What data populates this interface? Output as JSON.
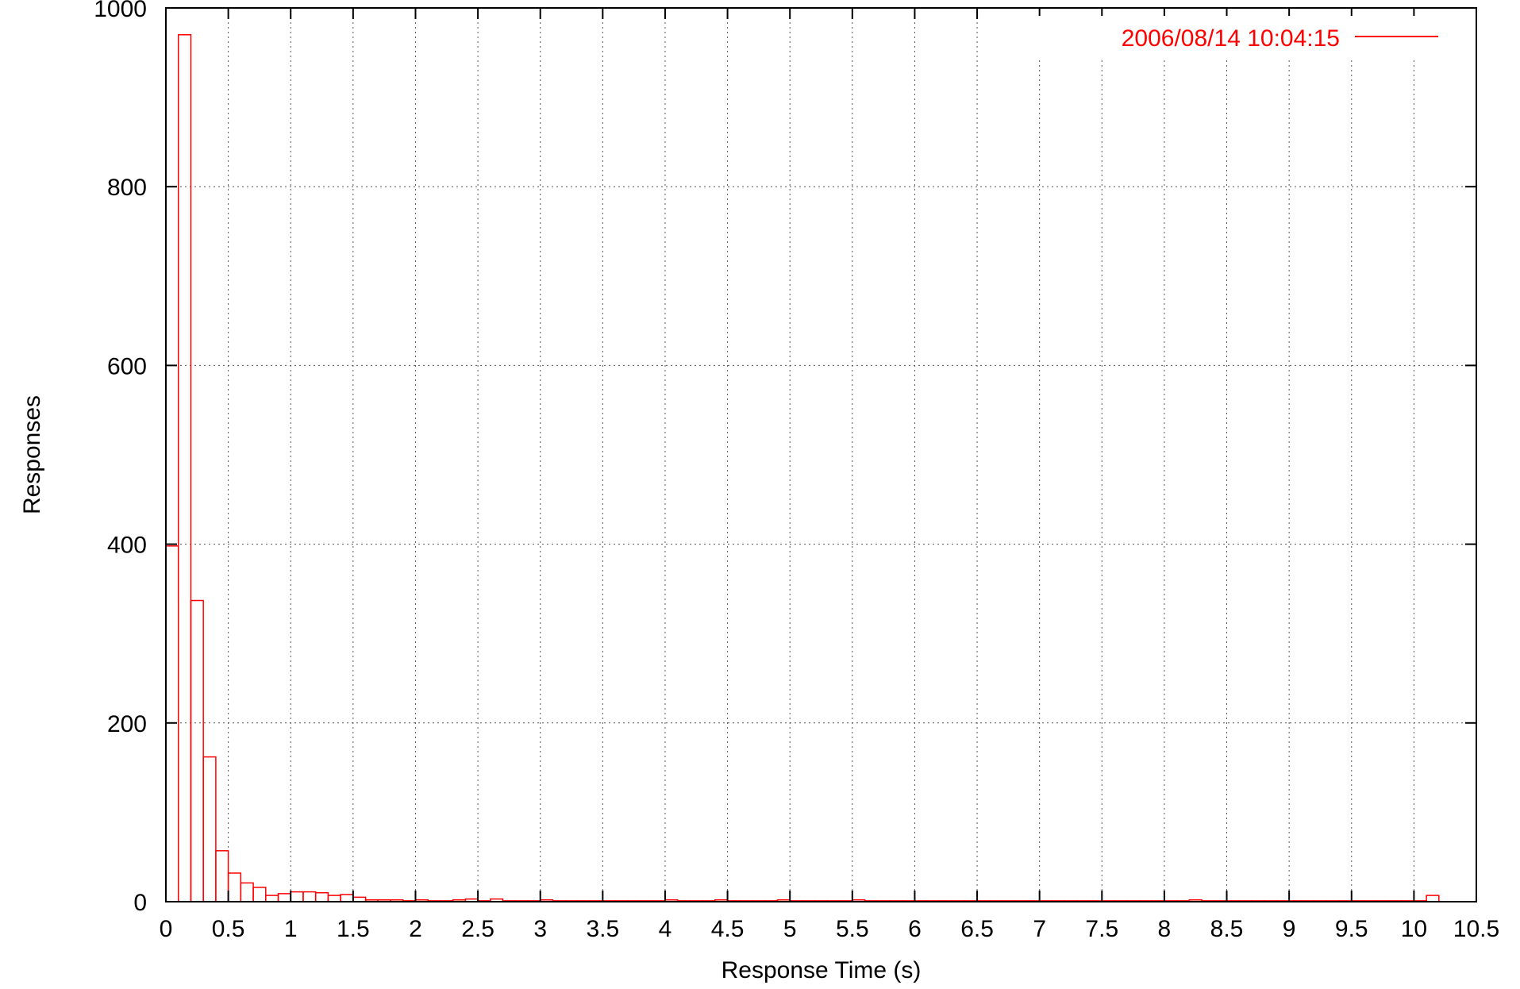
{
  "chart_data": {
    "type": "bar",
    "title": "",
    "xlabel": "Response Time (s)",
    "ylabel": "Responses",
    "xlim": [
      0,
      10.5
    ],
    "ylim": [
      0,
      1000
    ],
    "grid": true,
    "legend_position": "top-right",
    "bin_width": 0.1,
    "x_ticks": [
      "0",
      "0.5",
      "1",
      "1.5",
      "2",
      "2.5",
      "3",
      "3.5",
      "4",
      "4.5",
      "5",
      "5.5",
      "6",
      "6.5",
      "7",
      "7.5",
      "8",
      "8.5",
      "9",
      "9.5",
      "10",
      "10.5"
    ],
    "y_ticks": [
      "0",
      "200",
      "400",
      "600",
      "800",
      "1000"
    ],
    "series": [
      {
        "name": "2006/08/14 10:04:15",
        "color": "#ff0000",
        "x": [
          0.0,
          0.1,
          0.2,
          0.3,
          0.4,
          0.5,
          0.6,
          0.7,
          0.8,
          0.9,
          1.0,
          1.1,
          1.2,
          1.3,
          1.4,
          1.5,
          1.6,
          1.7,
          1.8,
          1.9,
          2.0,
          2.1,
          2.2,
          2.3,
          2.4,
          2.5,
          2.6,
          2.7,
          2.8,
          2.9,
          3.0,
          3.1,
          3.2,
          3.3,
          3.4,
          3.5,
          3.6,
          3.7,
          3.8,
          3.9,
          4.0,
          4.1,
          4.2,
          4.3,
          4.4,
          4.5,
          4.6,
          4.7,
          4.8,
          4.9,
          5.0,
          5.1,
          5.2,
          5.3,
          5.4,
          5.5,
          5.6,
          5.7,
          5.8,
          5.9,
          6.0,
          6.1,
          6.2,
          6.3,
          6.4,
          6.5,
          6.6,
          6.7,
          6.8,
          6.9,
          7.0,
          7.1,
          7.2,
          7.3,
          7.4,
          7.5,
          7.6,
          7.7,
          7.8,
          7.9,
          8.0,
          8.1,
          8.2,
          8.3,
          8.4,
          8.5,
          8.6,
          8.7,
          8.8,
          8.9,
          9.0,
          9.1,
          9.2,
          9.3,
          9.4,
          9.5,
          9.6,
          9.7,
          9.8,
          9.9,
          10.0,
          10.1
        ],
        "values": [
          398,
          970,
          337,
          162,
          57,
          32,
          21,
          16,
          7,
          9,
          11,
          11,
          10,
          7,
          8,
          5,
          2,
          2,
          2,
          1,
          2,
          1,
          1,
          2,
          3,
          1,
          3,
          1,
          1,
          1,
          2,
          1,
          1,
          1,
          1,
          1,
          1,
          1,
          1,
          1,
          2,
          1,
          1,
          1,
          2,
          1,
          1,
          1,
          1,
          2,
          1,
          1,
          1,
          1,
          1,
          2,
          1,
          1,
          1,
          1,
          1,
          1,
          1,
          1,
          1,
          1,
          1,
          1,
          1,
          1,
          1,
          1,
          1,
          1,
          1,
          1,
          1,
          1,
          1,
          1,
          1,
          1,
          2,
          1,
          1,
          1,
          1,
          1,
          1,
          1,
          1,
          1,
          1,
          1,
          1,
          1,
          1,
          1,
          1,
          1,
          1,
          7
        ]
      }
    ]
  }
}
